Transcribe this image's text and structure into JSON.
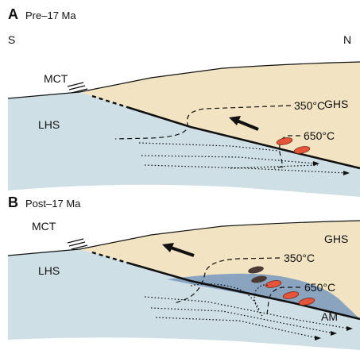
{
  "panels": [
    {
      "letter": "A",
      "subtitle": "Pre–17 Ma",
      "south": "S",
      "north": "N",
      "fault": "MCT",
      "upper_unit": "GHS",
      "lower_unit": "LHS",
      "isotherms": [
        "350°C",
        "650°C"
      ]
    },
    {
      "letter": "B",
      "subtitle": "Post–17 Ma",
      "fault": "MCT",
      "upper_unit": "GHS",
      "lower_unit": "LHS",
      "isotherms": [
        "350°C",
        "650°C"
      ],
      "zone": "AM"
    }
  ],
  "colors": {
    "ghs": "#f2e4c2",
    "lhs": "#cfdfe6",
    "am_zone": "#8aa3bf",
    "ellipse_hot": "#e4553a",
    "ellipse_cool": "#4a3a33"
  }
}
